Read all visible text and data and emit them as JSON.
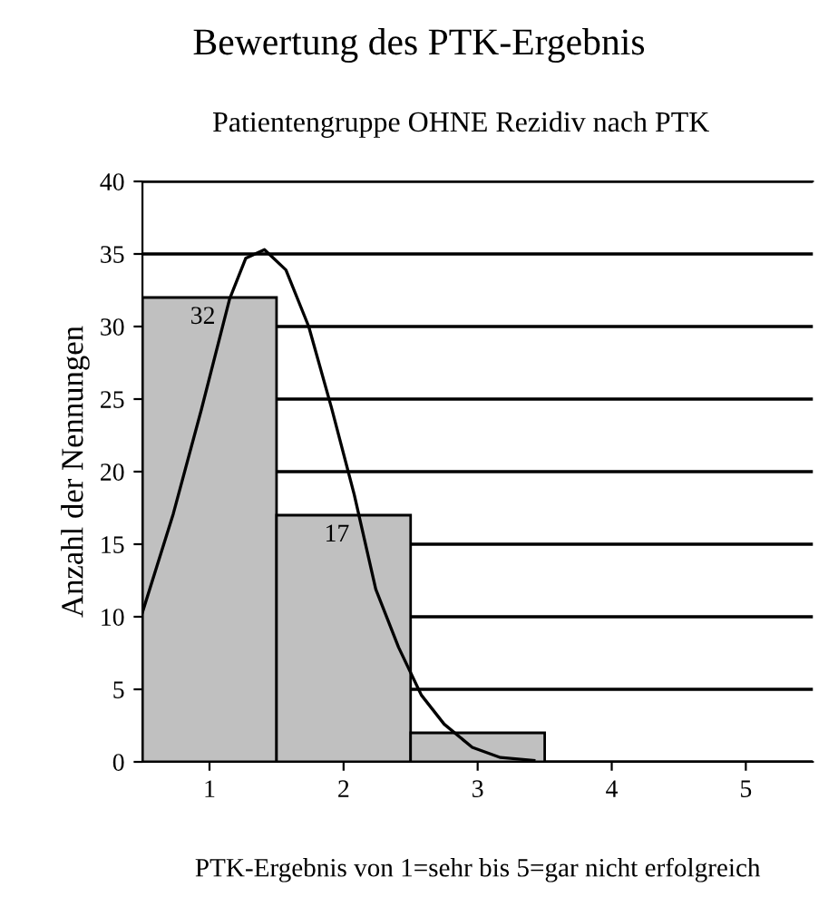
{
  "chart_data": {
    "type": "bar",
    "title": "Bewertung des PTK-Ergebnis",
    "subtitle": "Patientengruppe OHNE Rezidiv nach PTK",
    "xlabel": "PTK-Ergebnis von 1=sehr bis 5=gar nicht erfolgreich",
    "ylabel": "Anzahl der Nennungen",
    "x": [
      1,
      2,
      3,
      4,
      5
    ],
    "xlim": [
      0.5,
      5.5
    ],
    "xticks": [
      1,
      2,
      3,
      4,
      5
    ],
    "ylim": [
      0,
      40
    ],
    "yticks": [
      0,
      5,
      10,
      15,
      20,
      25,
      30,
      35,
      40
    ],
    "grid": "y",
    "legend": false,
    "series": [
      {
        "color": "#c0c0c0",
        "values": [
          32,
          17,
          2,
          0,
          0
        ],
        "value_labels": [
          "32",
          "17",
          null,
          null,
          null
        ]
      },
      {
        "type": "line",
        "color": "#000000",
        "x": [
          0.5,
          0.73,
          0.94,
          1.15,
          1.27,
          1.41,
          1.57,
          1.74,
          1.91,
          2.08,
          2.24,
          2.41,
          2.58,
          2.75,
          2.96,
          3.17,
          3.42
        ],
        "values": [
          10.3,
          17.1,
          24.3,
          31.9,
          34.7,
          35.3,
          33.9,
          30.0,
          24.4,
          18.4,
          11.9,
          7.9,
          4.6,
          2.6,
          1.0,
          0.3,
          0.1
        ]
      }
    ]
  }
}
